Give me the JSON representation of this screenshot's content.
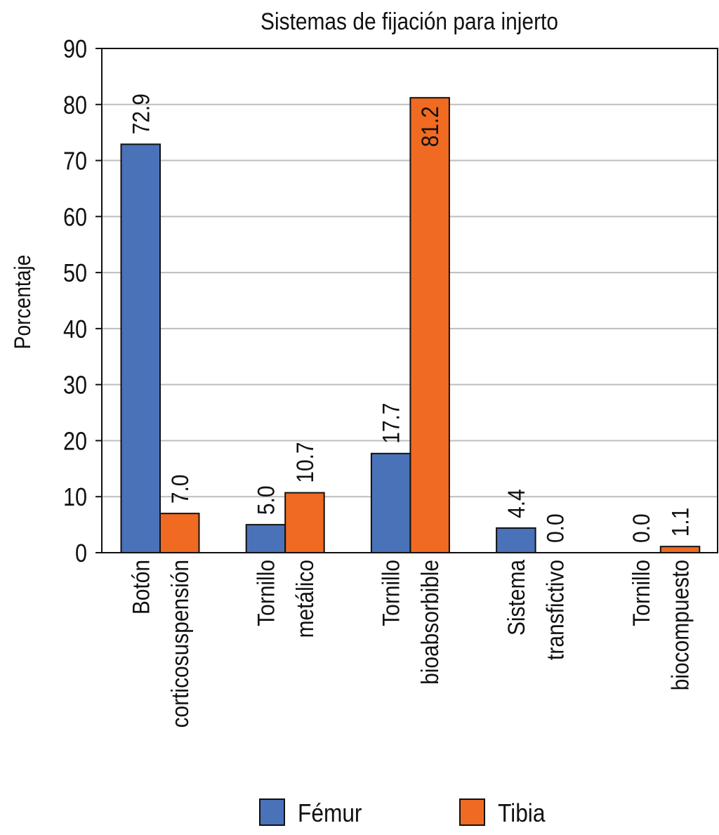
{
  "chart_data": {
    "type": "bar",
    "title": "Sistemas de fijación para injerto",
    "xlabel": "",
    "ylabel": "Porcentaje",
    "ylim": [
      0,
      90
    ],
    "yticks": [
      0,
      10,
      20,
      30,
      40,
      50,
      60,
      70,
      80,
      90
    ],
    "grid": true,
    "legend_position": "bottom",
    "categories": [
      [
        "Botón",
        "corticosuspensión"
      ],
      [
        "Tornillo",
        "metálico"
      ],
      [
        "Tornillo",
        "bioabsorbible"
      ],
      [
        "Sistema",
        "transfictivo"
      ],
      [
        "Tornillo",
        "biocompuesto"
      ]
    ],
    "series": [
      {
        "name": "Fémur",
        "color": "#4a72b8",
        "values": [
          72.9,
          5.0,
          17.7,
          4.4,
          0.0
        ],
        "labels": [
          "72.9",
          "5.0",
          "17.7",
          "4.4",
          "0.0"
        ]
      },
      {
        "name": "Tibia",
        "color": "#f06a22",
        "values": [
          7.0,
          10.7,
          81.2,
          0.0,
          1.1
        ],
        "labels": [
          "7.0",
          "10.7",
          "81.2",
          "0.0",
          "1.1"
        ]
      }
    ]
  }
}
